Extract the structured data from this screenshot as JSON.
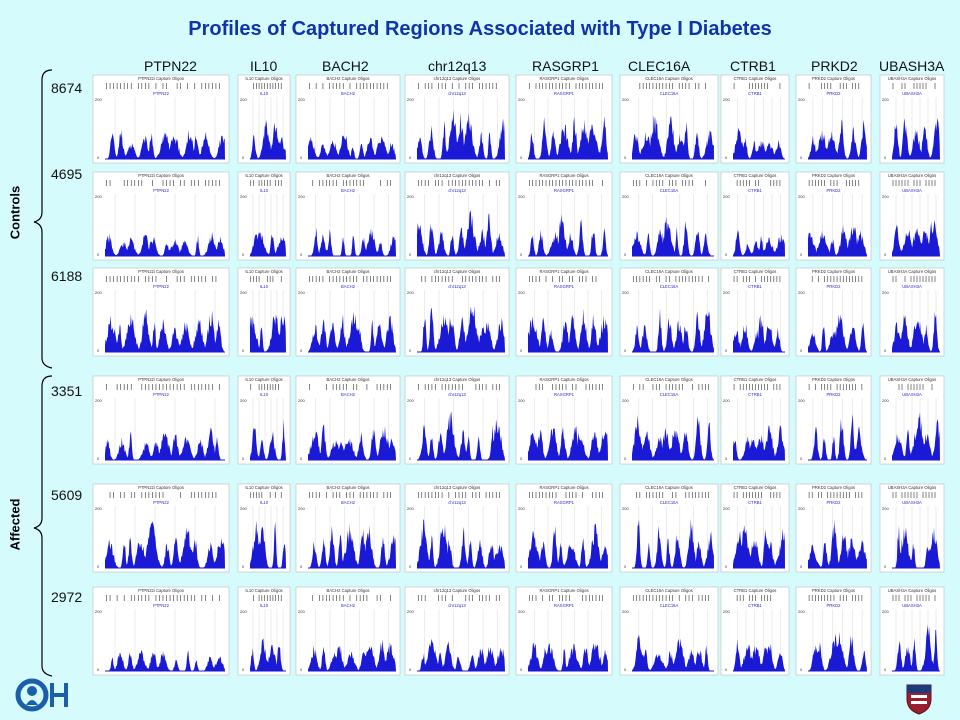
{
  "title": "Profiles of Captured Regions Associated with Type I Diabetes",
  "genes": [
    "PTPN22",
    "IL10",
    "BACH2",
    "chr12q13",
    "RASGRP1",
    "CLEC16A",
    "CTRB1",
    "PRKD2",
    "UBASH3A"
  ],
  "panel_titles": [
    "PTPN22i Capture Oligos",
    "IL10 Capture Oligos",
    "BACH2 Capture Oligos",
    "chr12q13 Capture Oligos",
    "RASGRP1 Capture Oligos",
    "CLEC16A Capture Oligos",
    "CTRB1 Capture Oligos",
    "PRKD2 Capture Oligos",
    "UBASH3A Capture Oligos"
  ],
  "panel_tracks": [
    "PTPN22",
    "IL10",
    "BACH2",
    "chr12q13",
    "RASGRP1",
    "CLEC16A",
    "CTRB1",
    "PRKD2",
    "UBASH3A"
  ],
  "groups": [
    {
      "label": "Controls",
      "samples": [
        "8674",
        "4695",
        "6188"
      ]
    },
    {
      "label": "Affected",
      "samples": [
        "3351",
        "5609",
        "2972"
      ]
    }
  ],
  "y_ticks": [
    "200",
    "0"
  ],
  "colors": {
    "background": "#d5fbfd",
    "title": "#1133aa",
    "profile": "#1a1ad6",
    "panel": "#ffffff"
  },
  "chart_data": {
    "type": "area",
    "title": "Profiles of Captured Regions Associated with Type I Diabetes",
    "rows": [
      "8674",
      "4695",
      "6188",
      "3351",
      "5609",
      "2972"
    ],
    "columns": [
      "PTPN22",
      "IL10",
      "BACH2",
      "chr12q13",
      "RASGRP1",
      "CLEC16A",
      "CTRB1",
      "PRKD2",
      "UBASH3A"
    ],
    "ylim": [
      0,
      200
    ],
    "profile_levels": [
      [
        0.55,
        0.75,
        0.55,
        0.85,
        0.8,
        0.85,
        0.6,
        0.75,
        0.85
      ],
      [
        0.45,
        0.6,
        0.55,
        0.8,
        0.75,
        0.8,
        0.45,
        0.55,
        0.75
      ],
      [
        0.8,
        0.85,
        0.75,
        0.85,
        0.85,
        0.85,
        0.65,
        0.7,
        0.8
      ],
      [
        0.55,
        0.75,
        0.65,
        0.85,
        0.65,
        0.8,
        0.65,
        0.85,
        0.85
      ],
      [
        0.85,
        0.85,
        0.85,
        0.9,
        0.8,
        0.9,
        0.85,
        0.8,
        0.85
      ],
      [
        0.45,
        0.75,
        0.55,
        0.6,
        0.55,
        0.7,
        0.65,
        0.7,
        0.8
      ]
    ]
  }
}
